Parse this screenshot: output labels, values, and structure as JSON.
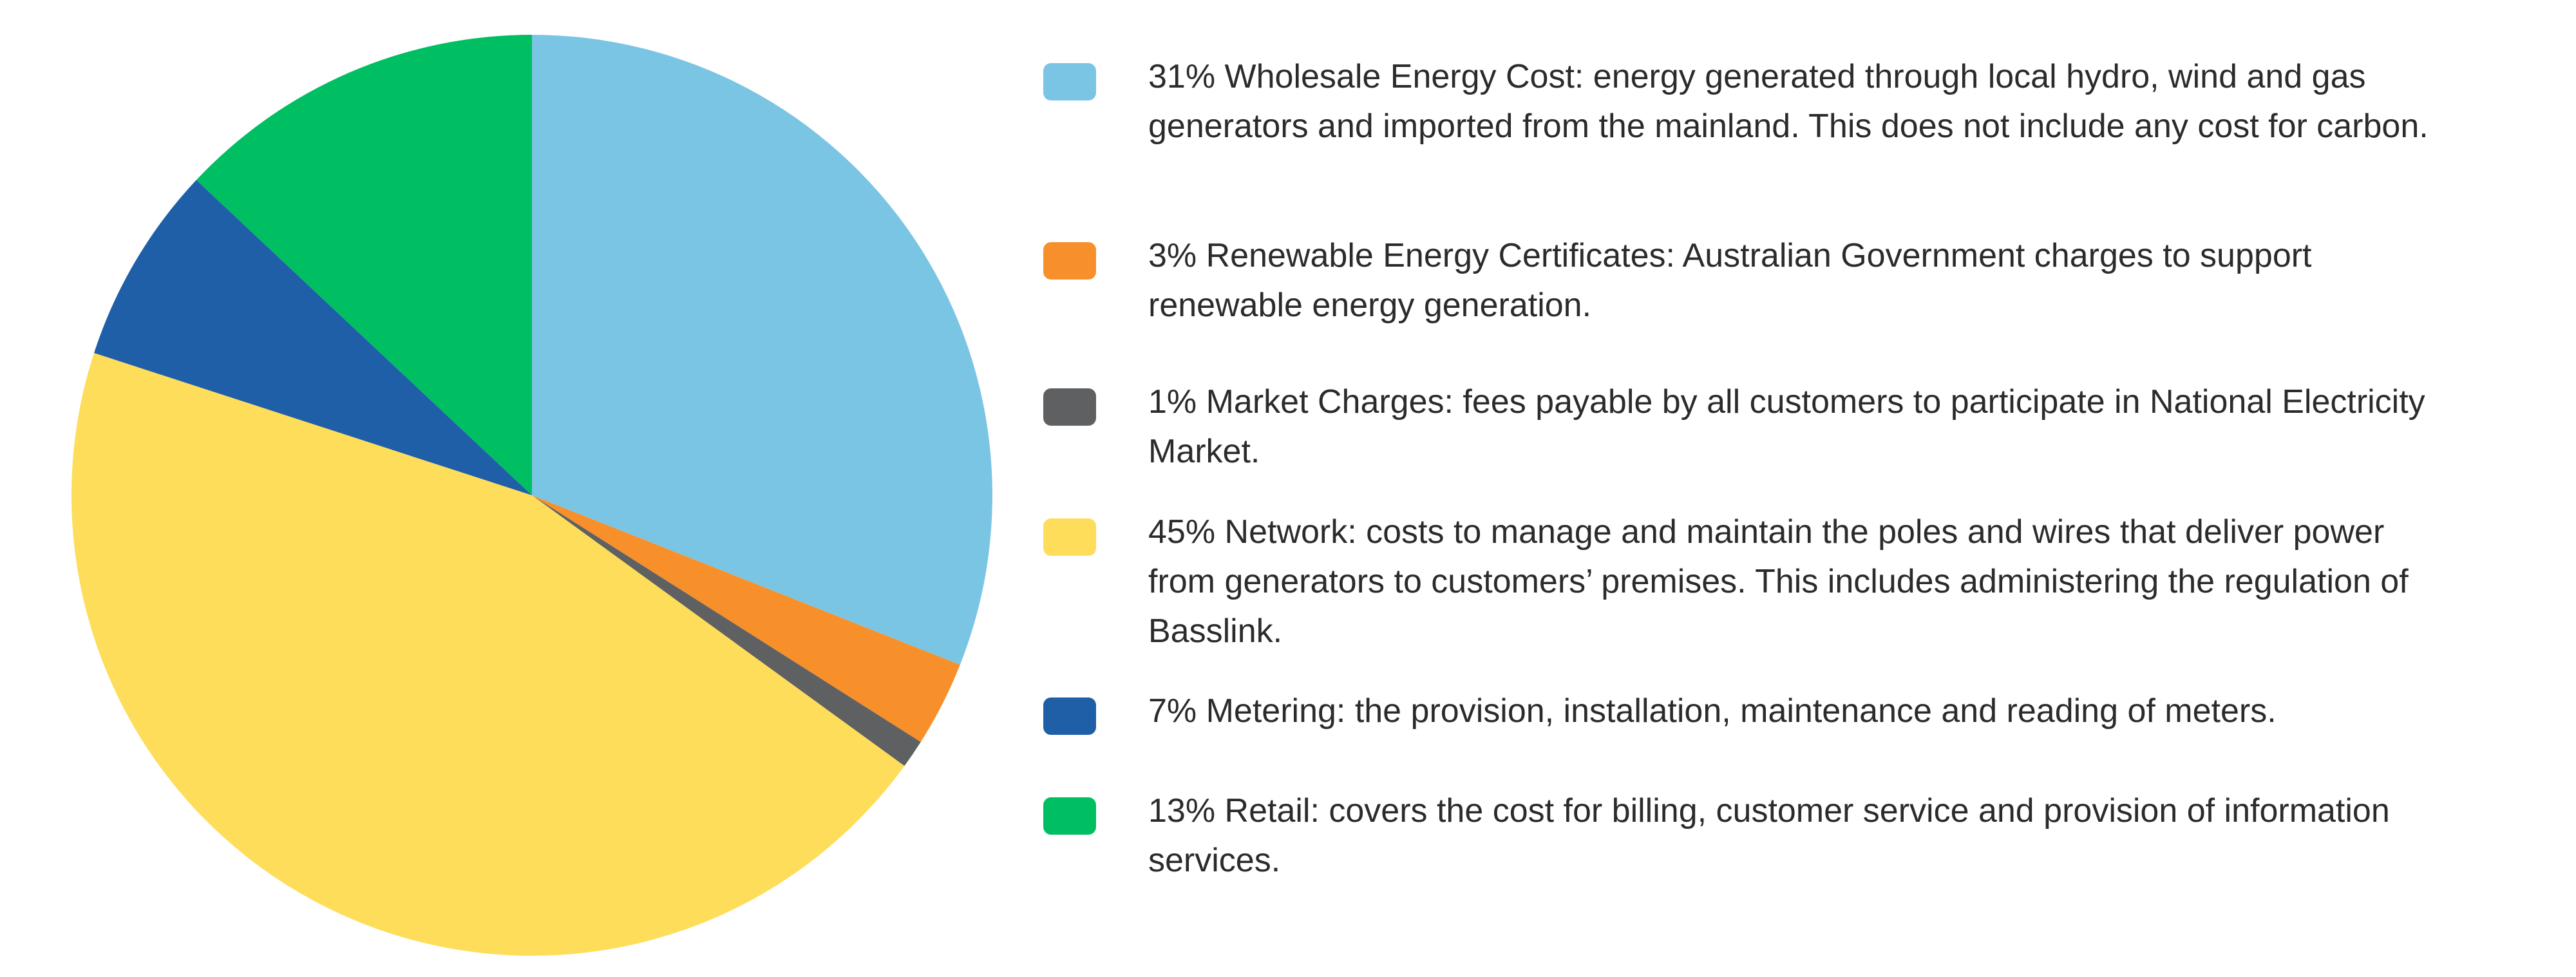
{
  "chart_data": {
    "type": "pie",
    "categories": [
      "Wholesale Energy Cost: energy generated through local hydro, wind and gas generators and imported from the mainland. This does not include any cost for carbon.",
      "Renewable Energy Certificates: Australian Government charges to support renewable energy generation.",
      "Market Charges: fees payable by all customers to participate in National Electricity Market.",
      "Network: costs to manage and maintain the poles and wires that deliver power from generators to customers’ premises. This includes administering the regulation of Basslink.",
      "Metering: the provision, installation, maintenance and reading of meters.",
      "Retail: covers the cost for billing, customer service and provision of information services."
    ],
    "values": [
      31,
      3,
      1,
      45,
      7,
      13
    ],
    "value_labels": [
      "31%",
      "3%",
      "1%",
      "45%",
      "7%",
      "13%"
    ],
    "colors": [
      "#7bc5e4",
      "#f7902a",
      "#5f6062",
      "#fedd5a",
      "#1e5fa8",
      "#00bf63"
    ]
  }
}
